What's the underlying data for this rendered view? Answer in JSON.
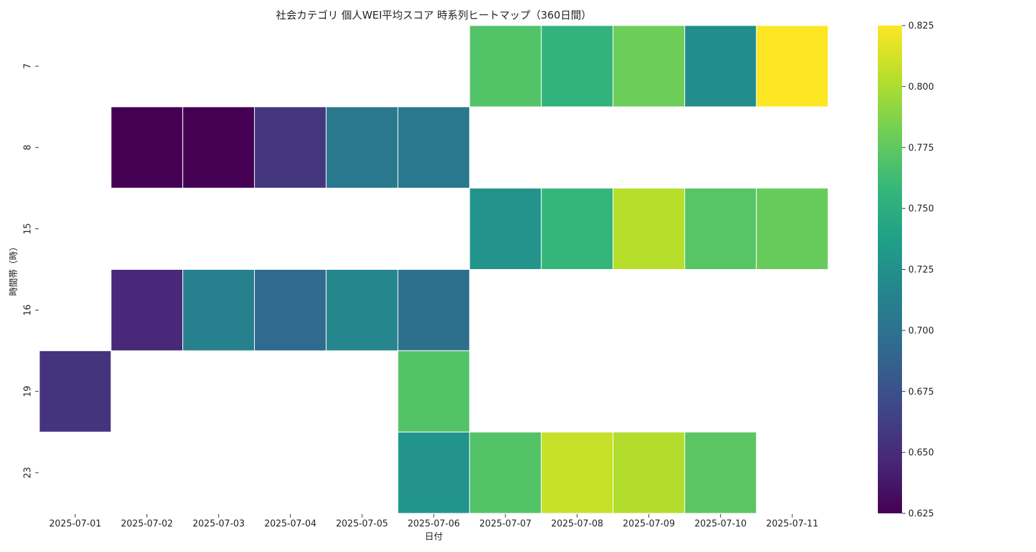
{
  "chart_data": {
    "type": "heatmap",
    "title": "社会カテゴリ 個人WEI平均スコア 時系列ヒートマップ（360日間）",
    "xlabel": "日付",
    "ylabel": "時間帯（時）",
    "x": [
      "2025-07-01",
      "2025-07-02",
      "2025-07-03",
      "2025-07-04",
      "2025-07-05",
      "2025-07-06",
      "2025-07-07",
      "2025-07-08",
      "2025-07-09",
      "2025-07-10",
      "2025-07-11"
    ],
    "y": [
      "7",
      "8",
      "15",
      "16",
      "19",
      "23"
    ],
    "values": [
      [
        null,
        null,
        null,
        null,
        null,
        null,
        0.77,
        0.755,
        0.78,
        0.722,
        0.825
      ],
      [
        null,
        0.625,
        0.625,
        0.657,
        0.705,
        0.705,
        null,
        null,
        null,
        null,
        null
      ],
      [
        null,
        null,
        null,
        null,
        null,
        null,
        0.728,
        0.757,
        0.803,
        0.772,
        0.778
      ],
      [
        null,
        0.647,
        0.712,
        0.693,
        0.717,
        0.698,
        null,
        null,
        null,
        null,
        null
      ],
      [
        0.655,
        null,
        null,
        null,
        null,
        0.77,
        null,
        null,
        null,
        null,
        null
      ],
      [
        null,
        null,
        null,
        null,
        null,
        0.728,
        0.77,
        0.808,
        0.802,
        0.773,
        null
      ]
    ],
    "colorbar": {
      "colormap": "viridis",
      "range": [
        0.625,
        0.825
      ],
      "ticks": [
        "0.625",
        "0.650",
        "0.675",
        "0.700",
        "0.725",
        "0.750",
        "0.775",
        "0.800",
        "0.825"
      ]
    },
    "grid": false,
    "legend": "colorbar-right"
  }
}
